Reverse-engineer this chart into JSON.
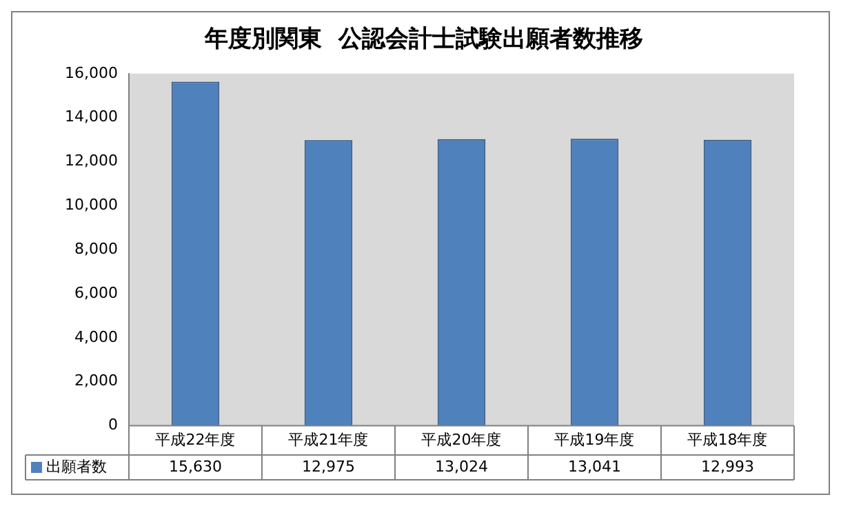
{
  "chart_data": {
    "type": "bar",
    "title": "年度別関東  公認会計士試験出願者数推移",
    "categories": [
      "平成22年度",
      "平成21年度",
      "平成20年度",
      "平成19年度",
      "平成18年度"
    ],
    "series": [
      {
        "name": "出願者数",
        "color": "#4f81bd",
        "values": [
          15630,
          12975,
          13024,
          13041,
          12993
        ],
        "value_labels": [
          "15,630",
          "12,975",
          "13,024",
          "13,041",
          "12,993"
        ]
      }
    ],
    "ylim": [
      0,
      16000
    ],
    "yticks": [
      {
        "value": 0,
        "label": "0"
      },
      {
        "value": 2000,
        "label": "2,000"
      },
      {
        "value": 4000,
        "label": "4,000"
      },
      {
        "value": 6000,
        "label": "6,000"
      },
      {
        "value": 8000,
        "label": "8,000"
      },
      {
        "value": 10000,
        "label": "10,000"
      },
      {
        "value": 12000,
        "label": "12,000"
      },
      {
        "value": 14000,
        "label": "14,000"
      },
      {
        "value": 16000,
        "label": "16,000"
      }
    ],
    "grid": false,
    "legend": "bottom"
  }
}
